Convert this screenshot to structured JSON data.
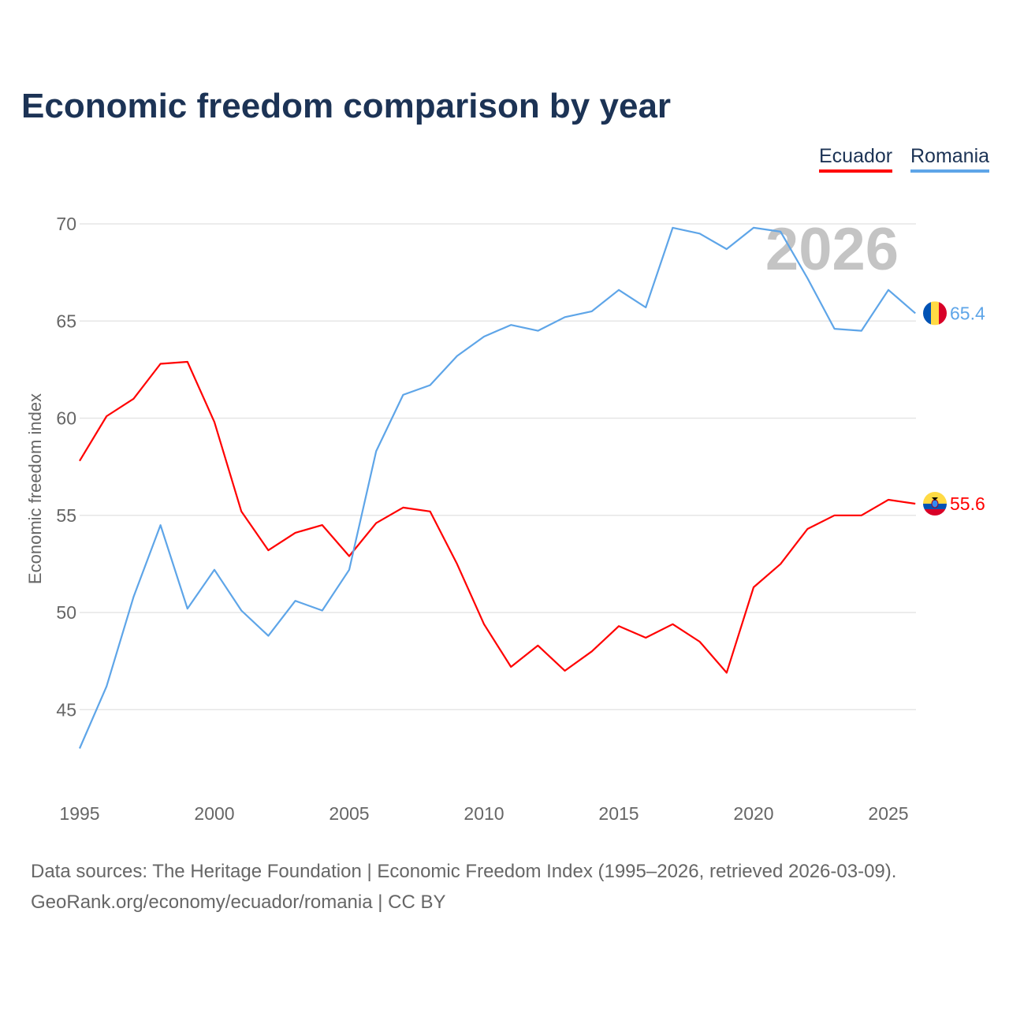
{
  "chart_data": {
    "type": "line",
    "title": "Economic freedom comparison by year",
    "xlabel": "",
    "ylabel": "Economic freedom index",
    "xlim": [
      1995,
      2026
    ],
    "ylim": [
      42,
      72
    ],
    "yticks": [
      45,
      50,
      55,
      60,
      65,
      70
    ],
    "xticks": [
      1995,
      2000,
      2005,
      2010,
      2015,
      2020,
      2025
    ],
    "grid": true,
    "legend_placement": "top-right",
    "year_watermark": "2026",
    "x": [
      1995,
      1996,
      1997,
      1998,
      1999,
      2000,
      2001,
      2002,
      2003,
      2004,
      2005,
      2006,
      2007,
      2008,
      2009,
      2010,
      2011,
      2012,
      2013,
      2014,
      2015,
      2016,
      2017,
      2018,
      2019,
      2020,
      2021,
      2022,
      2023,
      2024,
      2025,
      2026
    ],
    "series": [
      {
        "name": "Ecuador",
        "color": "#ff0000",
        "end_label": "55.6",
        "values": [
          57.8,
          60.1,
          61.0,
          62.8,
          62.9,
          59.8,
          55.2,
          53.2,
          54.1,
          54.5,
          52.9,
          54.6,
          55.4,
          55.2,
          52.5,
          49.4,
          47.2,
          48.3,
          47.0,
          48.0,
          49.3,
          48.7,
          49.4,
          48.5,
          46.9,
          51.3,
          52.5,
          54.3,
          55.0,
          55.0,
          55.8,
          55.6
        ]
      },
      {
        "name": "Romania",
        "color": "#5ea5e8",
        "end_label": "65.4",
        "values": [
          43.0,
          46.2,
          50.8,
          54.5,
          50.2,
          52.2,
          50.1,
          48.8,
          50.6,
          50.1,
          52.2,
          58.3,
          61.2,
          61.7,
          63.2,
          64.2,
          64.8,
          64.5,
          65.2,
          65.5,
          66.6,
          65.7,
          69.8,
          69.5,
          68.7,
          69.8,
          69.6,
          67.2,
          64.6,
          64.5,
          66.6,
          65.4
        ]
      }
    ]
  },
  "source": {
    "line1": "Data sources: The Heritage Foundation | Economic Freedom Index (1995–2026, retrieved 2026-03-09).",
    "line2": "GeoRank.org/economy/ecuador/romania | CC BY"
  }
}
